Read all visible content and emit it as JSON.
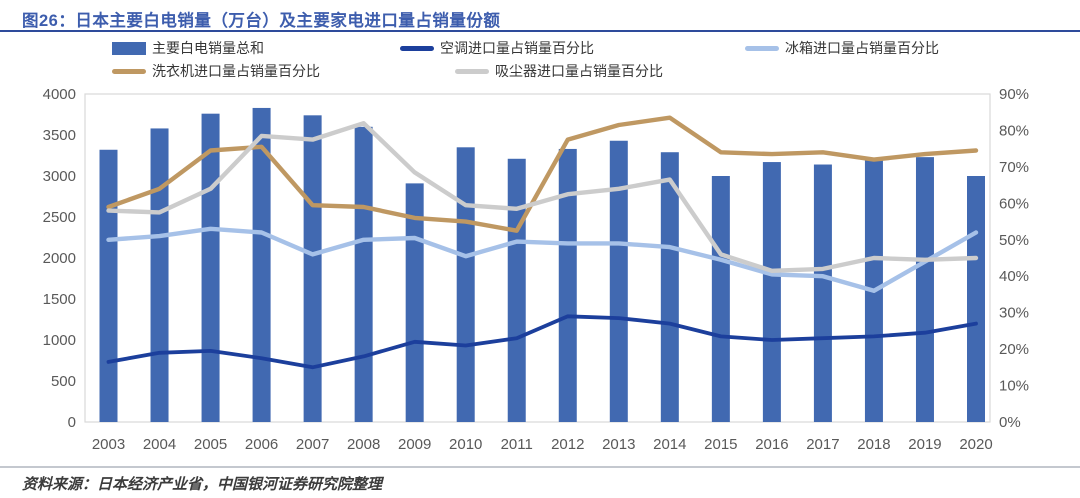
{
  "header": {
    "title": "图26：日本主要白电销量（万台）及主要家电进口量占销量份额"
  },
  "footer": {
    "source": "资料来源：日本经济产业省，中国银河证券研究院整理"
  },
  "colors": {
    "title_blue": "#3D5DAD",
    "rule_blue": "#2E4B9B",
    "bar_blue": "#4169B1",
    "ac_navy": "#1C3F9C",
    "fridge_light_blue": "#A6C1E8",
    "washer_tan": "#BF9862",
    "vacuum_gray": "#CCCCCC",
    "axis_text": "#595959",
    "plot_border": "#D9D9D9"
  },
  "chart_data": {
    "type": "bar",
    "subtype": "combo-bar-line-dual-axis",
    "title": "图26：日本主要白电销量（万台）及主要家电进口量占销量份额",
    "categories": [
      "2003",
      "2004",
      "2005",
      "2006",
      "2007",
      "2008",
      "2009",
      "2010",
      "2011",
      "2012",
      "2013",
      "2014",
      "2015",
      "2016",
      "2017",
      "2018",
      "2019",
      "2020"
    ],
    "bar_series": {
      "name": "主要白电销量总和",
      "axis": "left",
      "unit": "万台",
      "color": "#4169B1",
      "values": [
        3320,
        3580,
        3760,
        3830,
        3740,
        3600,
        2910,
        3350,
        3210,
        3330,
        3430,
        3290,
        3000,
        3170,
        3140,
        3210,
        3230,
        3000
      ]
    },
    "line_series": [
      {
        "name": "空调进口量占销量百分比",
        "axis": "right",
        "unit": "%",
        "color": "#1C3F9C",
        "values": [
          16.5,
          19,
          19.5,
          17.5,
          15,
          18,
          22,
          21,
          23,
          29,
          28.5,
          27,
          23.5,
          22.5,
          23,
          23.5,
          24.5,
          27
        ]
      },
      {
        "name": "冰箱进口量占销量百分比",
        "axis": "right",
        "unit": "%",
        "color": "#A6C1E8",
        "values": [
          50,
          51,
          53,
          52,
          46,
          50,
          50.5,
          45.5,
          49.5,
          49,
          49,
          48,
          44.5,
          40.5,
          40,
          36,
          44,
          52
        ]
      },
      {
        "name": "洗衣机进口量占销量百分比",
        "axis": "right",
        "unit": "%",
        "color": "#BF9862",
        "values": [
          59,
          64,
          74.5,
          75.5,
          59.5,
          59,
          56,
          55,
          52.5,
          77.5,
          81.5,
          83.5,
          74,
          73.5,
          74,
          72,
          73.5,
          74.5
        ]
      },
      {
        "name": "吸尘器进口量占销量百分比",
        "axis": "right",
        "unit": "%",
        "color": "#CCCCCC",
        "values": [
          58,
          57.5,
          64,
          78.5,
          77.5,
          82,
          68.5,
          59.5,
          58.5,
          62.5,
          64,
          66.5,
          46,
          41.5,
          42,
          45,
          44.5,
          45
        ]
      }
    ],
    "left_axis": {
      "min": 0,
      "max": 4000,
      "step": 500,
      "labels": [
        "0",
        "500",
        "1000",
        "1500",
        "2000",
        "2500",
        "3000",
        "3500",
        "4000"
      ]
    },
    "right_axis": {
      "min": 0,
      "max": 90,
      "step": 10,
      "suffix": "%",
      "labels": [
        "0%",
        "10%",
        "20%",
        "30%",
        "40%",
        "50%",
        "60%",
        "70%",
        "80%",
        "90%"
      ]
    },
    "grid": false,
    "legend_position": "top"
  }
}
